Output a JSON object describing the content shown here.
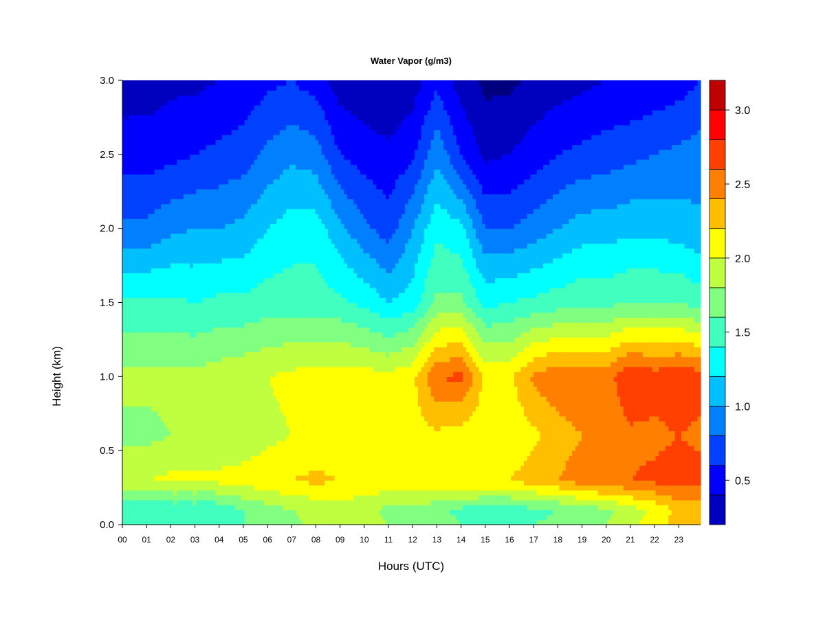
{
  "chart_data": {
    "type": "heatmap",
    "title": "Water Vapor (g/m3)",
    "xlabel": "Hours (UTC)",
    "ylabel": "Height (km)",
    "x_ticks": [
      "00",
      "01",
      "02",
      "03",
      "04",
      "05",
      "06",
      "07",
      "08",
      "09",
      "10",
      "11",
      "12",
      "13",
      "14",
      "15",
      "16",
      "17",
      "18",
      "19",
      "20",
      "21",
      "22",
      "23"
    ],
    "x_range": [
      0,
      23.9
    ],
    "y_ticks": [
      "0.0",
      "0.5",
      "1.0",
      "1.5",
      "2.0",
      "2.5",
      "3.0"
    ],
    "y_range": [
      0,
      3.0
    ],
    "colorbar": {
      "levels": [
        0.2,
        0.4,
        0.6,
        0.8,
        1.0,
        1.2,
        1.4,
        1.6,
        1.8,
        2.0,
        2.2,
        2.4,
        2.6,
        2.8,
        3.0,
        3.2
      ],
      "colors": [
        "#00007f",
        "#0000bf",
        "#0000ff",
        "#0040ff",
        "#0080ff",
        "#00bfff",
        "#00ffff",
        "#40ffbf",
        "#80ff80",
        "#bfff40",
        "#ffff00",
        "#ffbf00",
        "#ff8000",
        "#ff4000",
        "#ff0000",
        "#bf0000",
        "#7f0000"
      ],
      "tick_values": [
        0.5,
        1.0,
        1.5,
        2.0,
        2.5,
        3.0
      ],
      "tick_labels": [
        "0.5",
        "1.0",
        "1.5",
        "2.0",
        "2.5",
        "3.0"
      ]
    },
    "hours": [
      0,
      1,
      2,
      3,
      4,
      5,
      6,
      7,
      8,
      9,
      10,
      11,
      12,
      13,
      14,
      15,
      16,
      17,
      18,
      19,
      20,
      21,
      22,
      23,
      23.9
    ],
    "heights_km": [
      0.0,
      0.1,
      0.3,
      0.6,
      1.0,
      1.5,
      2.0,
      2.5,
      3.0
    ],
    "values": [
      [
        1.5,
        1.5,
        1.55,
        1.5,
        1.5,
        1.6,
        1.65,
        1.75,
        1.85,
        1.9,
        1.9,
        1.8,
        1.8,
        1.7,
        1.6,
        1.55,
        1.55,
        1.6,
        1.65,
        1.7,
        1.8,
        1.95,
        2.1,
        2.3,
        2.3
      ],
      [
        1.4,
        1.4,
        1.45,
        1.45,
        1.45,
        1.6,
        1.7,
        1.8,
        1.85,
        1.9,
        1.85,
        1.75,
        1.75,
        1.65,
        1.55,
        1.5,
        1.5,
        1.55,
        1.6,
        1.7,
        1.75,
        1.9,
        2.05,
        2.25,
        2.3
      ],
      [
        2.0,
        2.0,
        2.05,
        2.05,
        2.05,
        2.1,
        2.15,
        2.2,
        2.25,
        2.2,
        2.15,
        2.15,
        2.15,
        2.2,
        2.2,
        2.2,
        2.2,
        2.3,
        2.4,
        2.5,
        2.55,
        2.6,
        2.65,
        2.7,
        2.7
      ],
      [
        1.75,
        1.75,
        1.8,
        1.8,
        1.85,
        1.85,
        1.95,
        2.0,
        2.05,
        2.05,
        2.0,
        2.0,
        2.1,
        2.15,
        2.1,
        2.05,
        2.05,
        2.15,
        2.3,
        2.4,
        2.45,
        2.55,
        2.55,
        2.6,
        2.55
      ],
      [
        1.85,
        1.85,
        1.85,
        1.85,
        1.9,
        1.95,
        2.0,
        2.05,
        2.1,
        2.1,
        2.1,
        2.05,
        2.15,
        2.6,
        2.65,
        2.15,
        2.15,
        2.45,
        2.55,
        2.55,
        2.5,
        2.8,
        2.7,
        2.75,
        2.7
      ],
      [
        1.45,
        1.45,
        1.45,
        1.4,
        1.45,
        1.45,
        1.5,
        1.5,
        1.5,
        1.45,
        1.35,
        1.2,
        1.3,
        1.65,
        1.65,
        1.35,
        1.4,
        1.45,
        1.5,
        1.55,
        1.55,
        1.6,
        1.6,
        1.6,
        1.5
      ],
      [
        0.85,
        0.85,
        0.95,
        1.0,
        1.0,
        1.05,
        1.2,
        1.3,
        1.3,
        1.05,
        0.85,
        0.7,
        1.0,
        1.35,
        1.25,
        0.8,
        0.8,
        0.9,
        1.0,
        1.1,
        1.1,
        1.15,
        1.15,
        1.1,
        1.05
      ],
      [
        0.5,
        0.5,
        0.55,
        0.6,
        0.65,
        0.7,
        0.85,
        0.95,
        0.9,
        0.6,
        0.5,
        0.45,
        0.55,
        0.95,
        0.6,
        0.35,
        0.4,
        0.5,
        0.6,
        0.65,
        0.7,
        0.75,
        0.8,
        0.85,
        0.9
      ],
      [
        0.3,
        0.3,
        0.35,
        0.35,
        0.4,
        0.45,
        0.55,
        0.6,
        0.5,
        0.3,
        0.25,
        0.2,
        0.3,
        0.55,
        0.3,
        0.15,
        0.15,
        0.25,
        0.3,
        0.35,
        0.4,
        0.4,
        0.45,
        0.5,
        0.6
      ]
    ]
  }
}
